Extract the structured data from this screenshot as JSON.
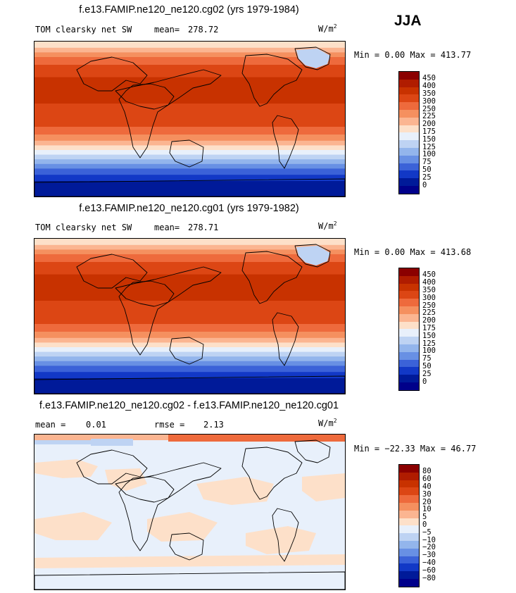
{
  "season": "JJA",
  "panels": [
    {
      "title": "f.e13.FAMIP.ne120_ne120.cg02 (yrs 1979-1984)",
      "left_label": "TOM clearsky net SW",
      "stat1_label": "mean=",
      "stat1_value": "278.72",
      "stat2_label": "",
      "stat2_value": "",
      "units_main": "W/m",
      "units_exp": "2",
      "minmax": "Min =   0.00 Max = 413.77",
      "levels": [
        "450",
        "400",
        "350",
        "300",
        "250",
        "225",
        "200",
        "175",
        "150",
        "125",
        "100",
        "75",
        "50",
        "25",
        "0"
      ],
      "colors": [
        "#8b0000",
        "#b01c00",
        "#c83200",
        "#dc4614",
        "#ee6a3c",
        "#f5905f",
        "#fbb591",
        "#fde0c9",
        "#e8f0fb",
        "#bed3f3",
        "#93b5ec",
        "#6890e4",
        "#3b62d8",
        "#1238c6",
        "#001a99",
        "#00008a"
      ]
    },
    {
      "title": "f.e13.FAMIP.ne120_ne120.cg01 (yrs 1979-1982)",
      "left_label": "TOM clearsky net SW",
      "stat1_label": "mean=",
      "stat1_value": "278.71",
      "stat2_label": "",
      "stat2_value": "",
      "units_main": "W/m",
      "units_exp": "2",
      "minmax": "Min =   0.00 Max = 413.68",
      "levels": [
        "450",
        "400",
        "350",
        "300",
        "250",
        "225",
        "200",
        "175",
        "150",
        "125",
        "100",
        "75",
        "50",
        "25",
        "0"
      ],
      "colors": [
        "#8b0000",
        "#b01c00",
        "#c83200",
        "#dc4614",
        "#ee6a3c",
        "#f5905f",
        "#fbb591",
        "#fde0c9",
        "#e8f0fb",
        "#bed3f3",
        "#93b5ec",
        "#6890e4",
        "#3b62d8",
        "#1238c6",
        "#001a99",
        "#00008a"
      ]
    },
    {
      "title": "f.e13.FAMIP.ne120_ne120.cg02 - f.e13.FAMIP.ne120_ne120.cg01",
      "left_label": "",
      "stat1_label": "mean =",
      "stat1_value": "0.01",
      "stat2_label": "rmse =",
      "stat2_value": "2.13",
      "units_main": "W/m",
      "units_exp": "2",
      "minmax": "Min = −22.33 Max =  46.77",
      "levels": [
        "80",
        "60",
        "40",
        "30",
        "20",
        "10",
        "5",
        "0",
        "−5",
        "−10",
        "−20",
        "−30",
        "−40",
        "−60",
        "−80"
      ],
      "colors": [
        "#8b0000",
        "#b01c00",
        "#c83200",
        "#dc4614",
        "#ee6a3c",
        "#f5905f",
        "#fbb591",
        "#fde0c9",
        "#e8f0fb",
        "#bed3f3",
        "#93b5ec",
        "#6890e4",
        "#3b62d8",
        "#1238c6",
        "#001a99",
        "#00008a"
      ]
    }
  ],
  "chart_data": {
    "type": "heatmap",
    "title": "JJA",
    "series": [
      {
        "name": "f.e13.FAMIP.ne120_ne120.cg02 (yrs 1979-1984)",
        "variable": "TOM clearsky net SW",
        "mean": 278.72,
        "min": 0.0,
        "max": 413.77,
        "units": "W/m2",
        "contour_levels": [
          0,
          25,
          50,
          75,
          100,
          125,
          150,
          175,
          200,
          225,
          250,
          300,
          350,
          400,
          450
        ],
        "zonal_band_values_north_to_south": [
          150,
          225,
          300,
          350,
          400,
          400,
          350,
          350,
          300,
          250,
          200,
          175,
          125,
          75,
          25,
          0
        ]
      },
      {
        "name": "f.e13.FAMIP.ne120_ne120.cg01 (yrs 1979-1982)",
        "variable": "TOM clearsky net SW",
        "mean": 278.71,
        "min": 0.0,
        "max": 413.68,
        "units": "W/m2",
        "contour_levels": [
          0,
          25,
          50,
          75,
          100,
          125,
          150,
          175,
          200,
          225,
          250,
          300,
          350,
          400,
          450
        ],
        "zonal_band_values_north_to_south": [
          150,
          225,
          300,
          350,
          400,
          400,
          350,
          350,
          300,
          250,
          200,
          175,
          125,
          75,
          25,
          0
        ]
      },
      {
        "name": "f.e13.FAMIP.ne120_ne120.cg02 - f.e13.FAMIP.ne120_ne120.cg01",
        "mean": 0.01,
        "rmse": 2.13,
        "min": -22.33,
        "max": 46.77,
        "units": "W/m2",
        "contour_levels": [
          -80,
          -60,
          -40,
          -30,
          -20,
          -10,
          -5,
          0,
          5,
          10,
          20,
          30,
          40,
          60,
          80
        ]
      }
    ]
  }
}
